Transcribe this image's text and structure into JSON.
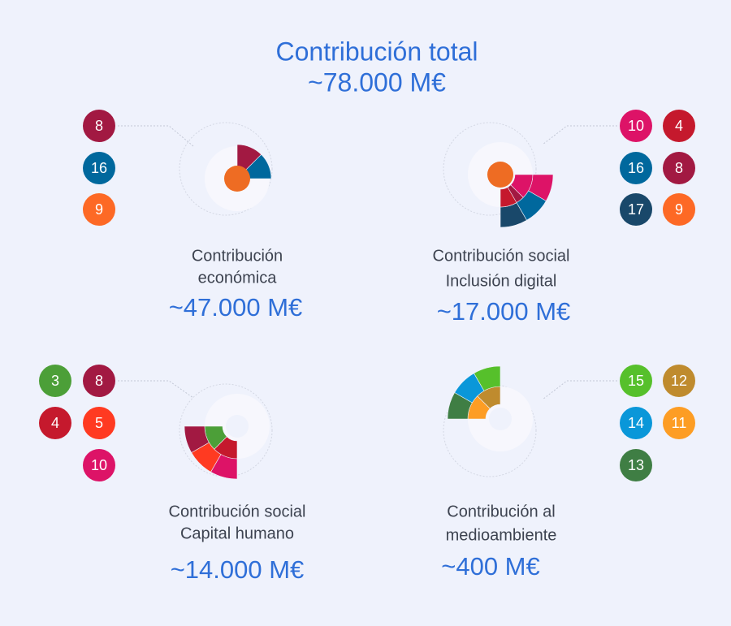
{
  "header": {
    "title": "Contribución total",
    "value": "~78.000 M€"
  },
  "sections": [
    {
      "label_lines": [
        "Contribución",
        "económica"
      ],
      "value": "~47.000 M€",
      "badges": [
        {
          "label": "8",
          "color": "#a21942"
        },
        {
          "label": "16",
          "color": "#00689d"
        },
        {
          "label": "9",
          "color": "#fd6925"
        }
      ]
    },
    {
      "label_lines": [
        "Contribución social",
        "Inclusión digital"
      ],
      "value": "~17.000 M€",
      "badges": [
        {
          "label": "10",
          "color": "#dd1367"
        },
        {
          "label": "4",
          "color": "#c5192d"
        },
        {
          "label": "16",
          "color": "#00689d"
        },
        {
          "label": "8",
          "color": "#a21942"
        },
        {
          "label": "17",
          "color": "#19486a"
        },
        {
          "label": "9",
          "color": "#fd6925"
        }
      ]
    },
    {
      "label_lines": [
        "Contribución social",
        "Capital humano"
      ],
      "value": "~14.000 M€",
      "badges": [
        {
          "label": "3",
          "color": "#4c9f38"
        },
        {
          "label": "8",
          "color": "#a21942"
        },
        {
          "label": "4",
          "color": "#c5192d"
        },
        {
          "label": "5",
          "color": "#ff3a21"
        },
        {
          "label": "10",
          "color": "#dd1367"
        }
      ]
    },
    {
      "label_lines": [
        "Contribución al",
        "medioambiente"
      ],
      "value": "~400 M€",
      "badges": [
        {
          "label": "15",
          "color": "#56c02b"
        },
        {
          "label": "12",
          "color": "#bf8b2e"
        },
        {
          "label": "14",
          "color": "#0a97d9"
        },
        {
          "label": "11",
          "color": "#fd9d24"
        },
        {
          "label": "13",
          "color": "#3f7e44"
        }
      ]
    }
  ]
}
